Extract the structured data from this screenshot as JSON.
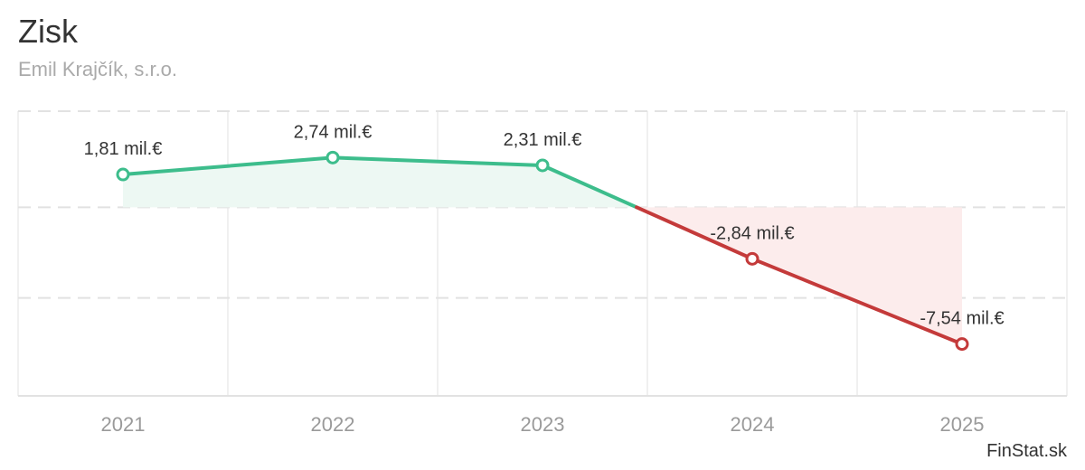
{
  "header": {
    "title": "Zisk",
    "subtitle": "Emil Krajčík, s.r.o."
  },
  "source_label": "FinStat.sk",
  "colors": {
    "positive": "#3dbd8c",
    "negative": "#c43a3a",
    "positive_fill": "#edf8f3",
    "negative_fill": "#fcecec",
    "grid": "#e2e2e2",
    "tick": "#9a9a9a",
    "label": "#333333"
  },
  "chart_data": {
    "type": "line",
    "title": "Zisk",
    "categories": [
      "2021",
      "2022",
      "2023",
      "2024",
      "2025"
    ],
    "series": [
      {
        "values": [
          1.81,
          2.74,
          2.31,
          -2.84,
          -7.54
        ],
        "labels": [
          "1,81 mil.€",
          "2,74 mil.€",
          "2,31 mil.€",
          "-2,84 mil.€",
          "-7,54 mil.€"
        ]
      }
    ],
    "unit": "mil.€",
    "ylim": [
      -10.4,
      5.3
    ],
    "y_gridlines": [
      5.3,
      0,
      -5.0,
      -10.4
    ],
    "grid": true,
    "legend": "none",
    "area_fill": true
  }
}
